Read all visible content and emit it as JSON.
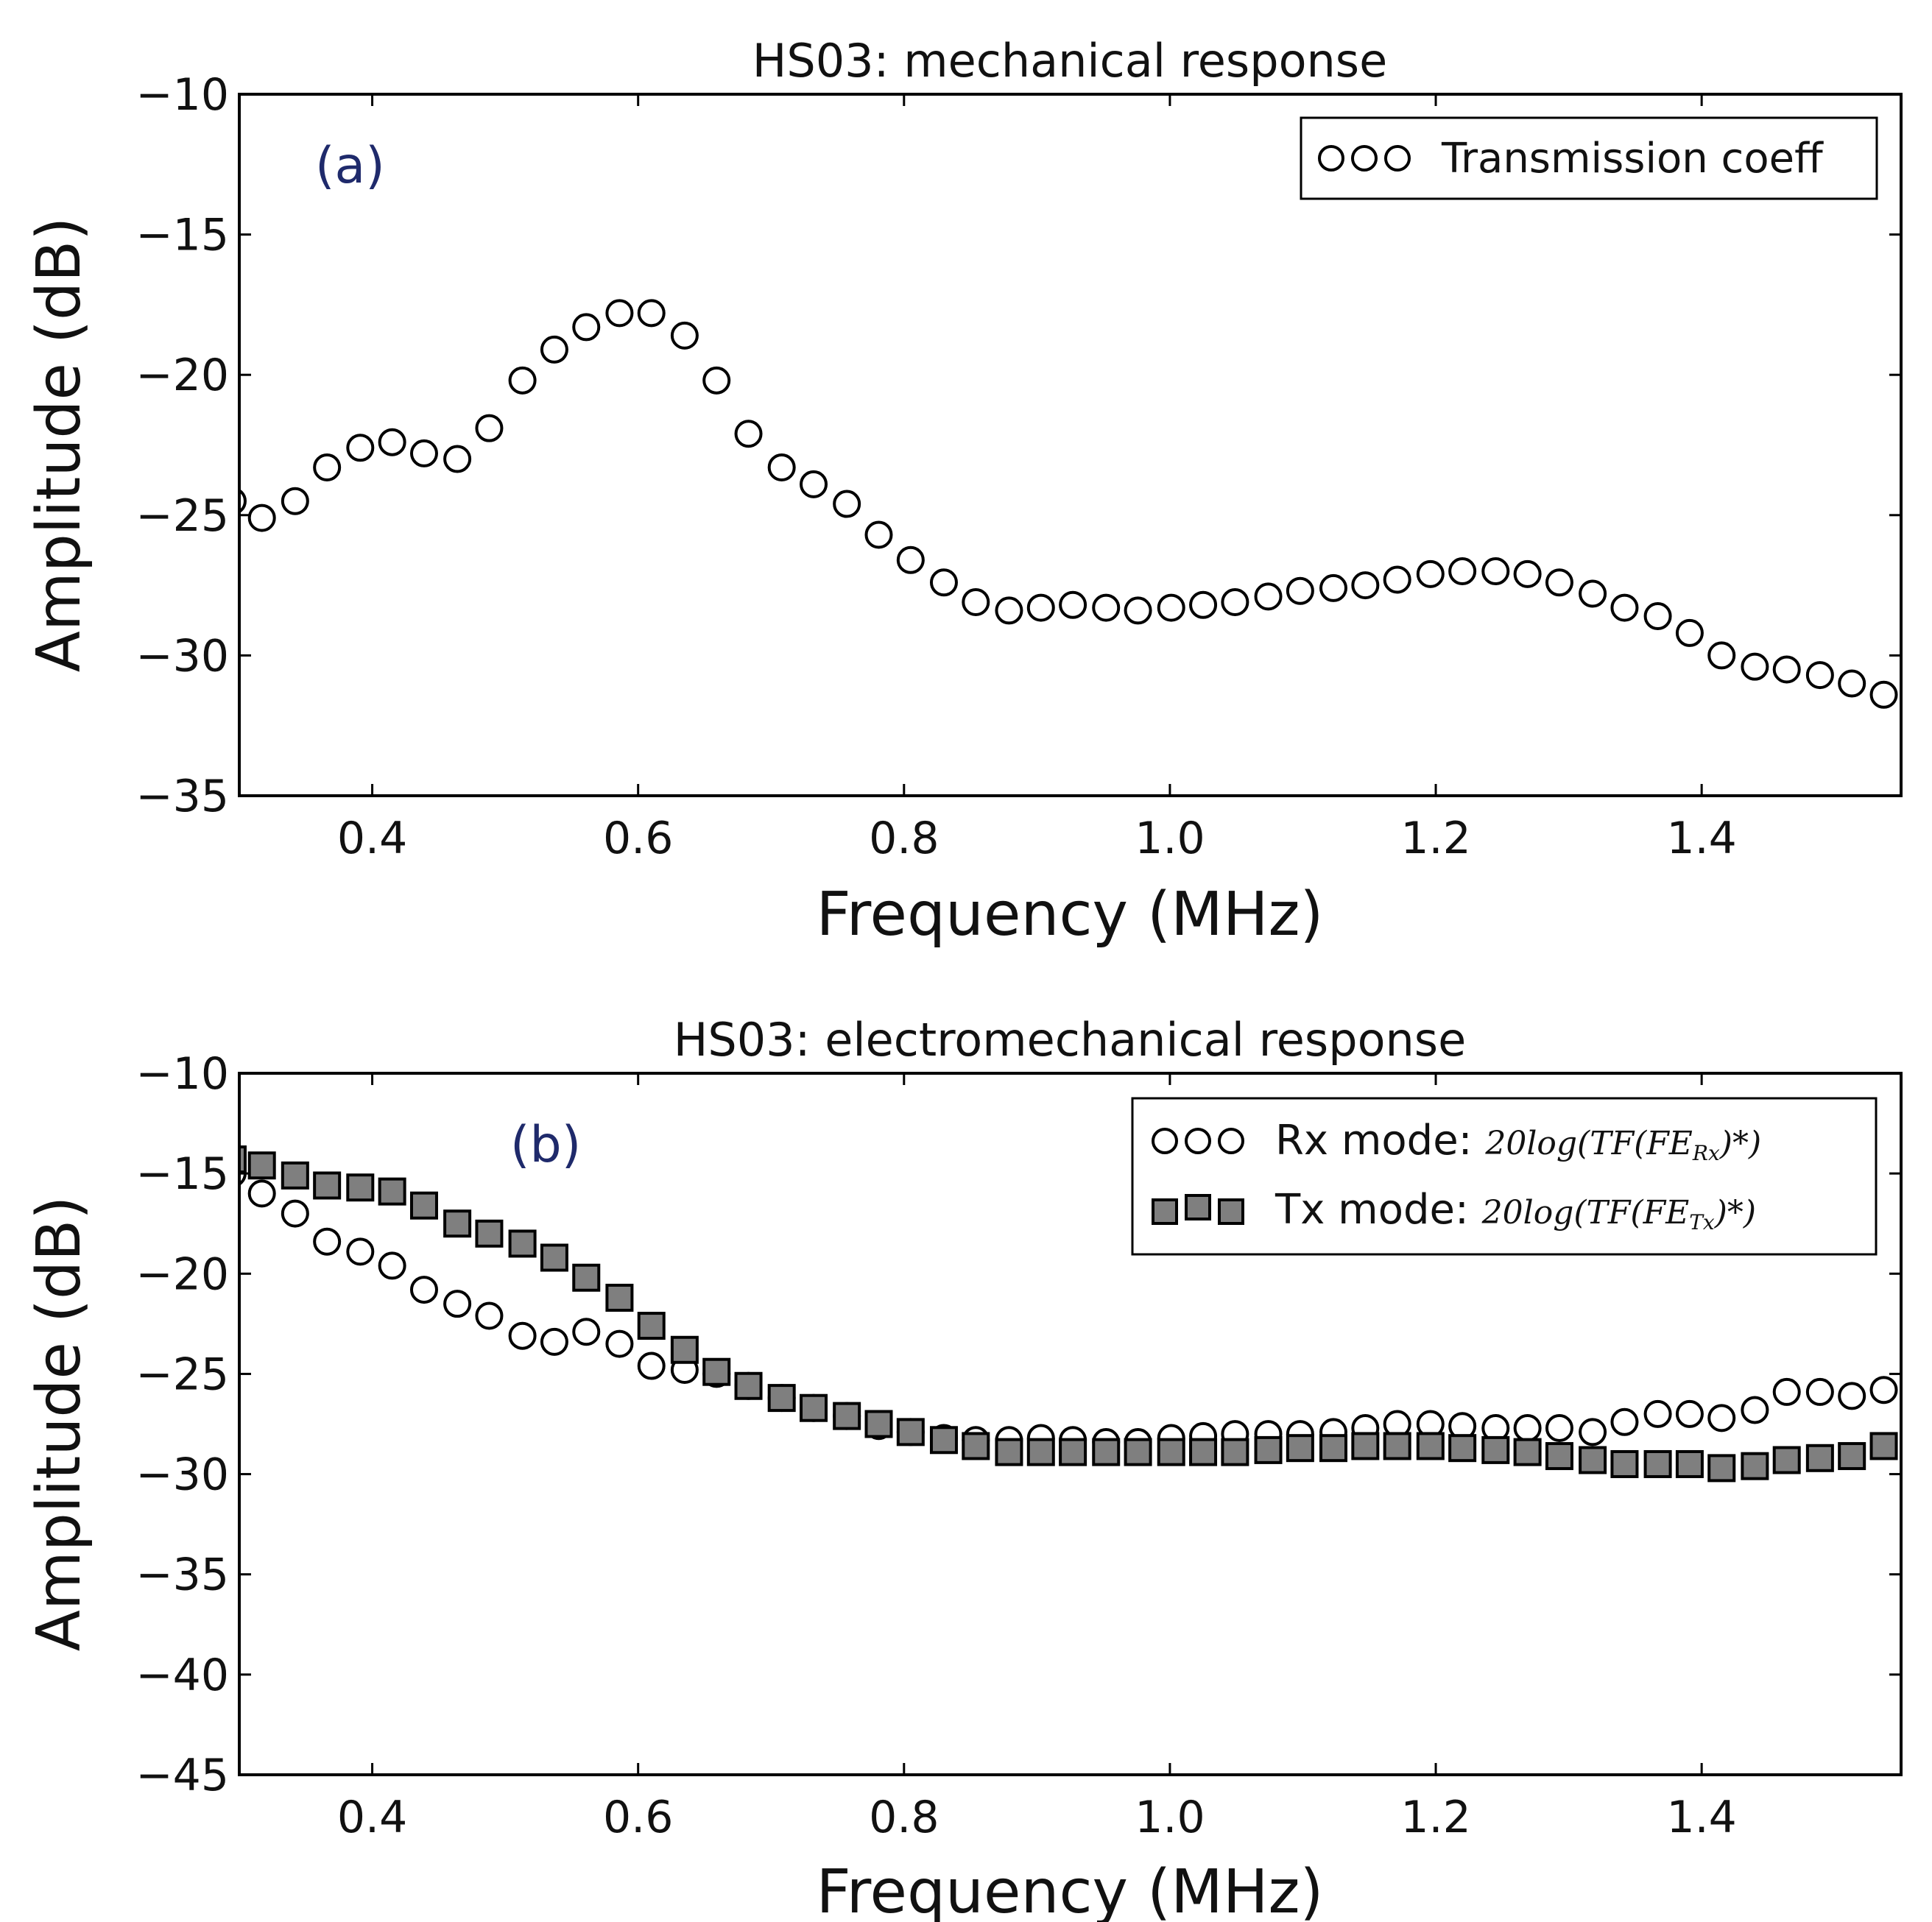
{
  "chart_data": [
    {
      "type": "scatter",
      "panel_label": "(a)",
      "title": "HS03: mechanical response",
      "xlabel": "Frequency (MHz)",
      "ylabel": "Amplitude (dB)",
      "xlim": [
        0.3,
        1.55
      ],
      "ylim": [
        -35,
        -10
      ],
      "xticks": [
        0.4,
        0.6,
        0.8,
        1.0,
        1.2,
        1.4
      ],
      "xtick_labels": [
        "0.4",
        "0.6",
        "0.8",
        "1.0",
        "1.2",
        "1.4"
      ],
      "yticks": [
        -35,
        -30,
        -25,
        -20,
        -15,
        -10
      ],
      "ytick_labels": [
        "−35",
        "−30",
        "−25",
        "−20",
        "−15",
        "−10"
      ],
      "grid": false,
      "legend_position": "top-right",
      "series": [
        {
          "name": "Transmission coeff",
          "legend_text": "Transmission coeff",
          "marker": "open-circle",
          "x": [
            0.295,
            0.317,
            0.342,
            0.366,
            0.391,
            0.415,
            0.439,
            0.464,
            0.488,
            0.513,
            0.537,
            0.561,
            0.586,
            0.61,
            0.635,
            0.659,
            0.683,
            0.708,
            0.732,
            0.757,
            0.781,
            0.805,
            0.83,
            0.854,
            0.879,
            0.903,
            0.927,
            0.952,
            0.976,
            1.001,
            1.025,
            1.049,
            1.074,
            1.098,
            1.123,
            1.147,
            1.171,
            1.196,
            1.22,
            1.245,
            1.269,
            1.293,
            1.318,
            1.342,
            1.367,
            1.391,
            1.415,
            1.44,
            1.464,
            1.489,
            1.513,
            1.537
          ],
          "y": [
            -24.5,
            -25.1,
            -24.5,
            -23.3,
            -22.6,
            -22.4,
            -22.8,
            -23.0,
            -21.9,
            -20.2,
            -19.1,
            -18.3,
            -17.8,
            -17.8,
            -18.6,
            -20.2,
            -22.1,
            -23.3,
            -23.9,
            -24.6,
            -25.7,
            -26.6,
            -27.4,
            -28.1,
            -28.4,
            -28.3,
            -28.2,
            -28.3,
            -28.4,
            -28.3,
            -28.2,
            -28.1,
            -27.9,
            -27.7,
            -27.6,
            -27.5,
            -27.3,
            -27.1,
            -27.0,
            -27.0,
            -27.1,
            -27.4,
            -27.8,
            -28.3,
            -28.6,
            -29.2,
            -30.0,
            -30.4,
            -30.5,
            -30.7,
            -31.0,
            -31.4
          ]
        }
      ]
    },
    {
      "type": "scatter",
      "panel_label": "(b)",
      "title": "HS03: electromechanical response",
      "xlabel": "Frequency (MHz)",
      "ylabel": "Amplitude (dB)",
      "xlim": [
        0.3,
        1.55
      ],
      "ylim": [
        -45,
        -10
      ],
      "xticks": [
        0.4,
        0.6,
        0.8,
        1.0,
        1.2,
        1.4
      ],
      "xtick_labels": [
        "0.4",
        "0.6",
        "0.8",
        "1.0",
        "1.2",
        "1.4"
      ],
      "yticks": [
        -45,
        -40,
        -35,
        -30,
        -25,
        -20,
        -15,
        -10
      ],
      "ytick_labels": [
        "−45",
        "−40",
        "−35",
        "−30",
        "−25",
        "−20",
        "−15",
        "−10"
      ],
      "grid": false,
      "legend_position": "top-right",
      "series": [
        {
          "name": "Rx mode",
          "legend_text": "Rx mode: ",
          "legend_math": "20log(TF(FE",
          "legend_sub": "Rx",
          "legend_math_end": ")*)",
          "marker": "open-circle",
          "x": [
            0.295,
            0.317,
            0.342,
            0.366,
            0.391,
            0.415,
            0.439,
            0.464,
            0.488,
            0.513,
            0.537,
            0.561,
            0.586,
            0.61,
            0.635,
            0.659,
            0.683,
            0.708,
            0.732,
            0.757,
            0.781,
            0.805,
            0.83,
            0.854,
            0.879,
            0.903,
            0.927,
            0.952,
            0.976,
            1.001,
            1.025,
            1.049,
            1.074,
            1.098,
            1.123,
            1.147,
            1.171,
            1.196,
            1.22,
            1.245,
            1.269,
            1.293,
            1.318,
            1.342,
            1.367,
            1.391,
            1.415,
            1.44,
            1.464,
            1.489,
            1.513,
            1.537
          ],
          "y": [
            -15.0,
            -16.0,
            -17.0,
            -18.4,
            -18.9,
            -19.6,
            -20.8,
            -21.5,
            -22.1,
            -23.1,
            -23.4,
            -22.9,
            -23.5,
            -24.6,
            -24.8,
            -25.0,
            -25.6,
            -26.2,
            -26.7,
            -27.1,
            -27.6,
            -27.9,
            -28.2,
            -28.3,
            -28.3,
            -28.2,
            -28.3,
            -28.4,
            -28.4,
            -28.2,
            -28.1,
            -28.0,
            -28.0,
            -28.0,
            -27.9,
            -27.7,
            -27.5,
            -27.5,
            -27.6,
            -27.7,
            -27.7,
            -27.7,
            -27.9,
            -27.4,
            -27.0,
            -27.0,
            -27.2,
            -26.8,
            -25.9,
            -25.9,
            -26.1,
            -25.8
          ]
        },
        {
          "name": "Tx mode",
          "legend_text": "Tx mode: ",
          "legend_math": "20log(TF(FE",
          "legend_sub": "Tx",
          "legend_math_end": ")*)",
          "marker": "filled-square",
          "marker_color": "#7f7f7f",
          "x": [
            0.295,
            0.317,
            0.342,
            0.366,
            0.391,
            0.415,
            0.439,
            0.464,
            0.488,
            0.513,
            0.537,
            0.561,
            0.586,
            0.61,
            0.635,
            0.659,
            0.683,
            0.708,
            0.732,
            0.757,
            0.781,
            0.805,
            0.83,
            0.854,
            0.879,
            0.903,
            0.927,
            0.952,
            0.976,
            1.001,
            1.025,
            1.049,
            1.074,
            1.098,
            1.123,
            1.147,
            1.171,
            1.196,
            1.22,
            1.245,
            1.269,
            1.293,
            1.318,
            1.342,
            1.367,
            1.391,
            1.415,
            1.44,
            1.464,
            1.489,
            1.513,
            1.537
          ],
          "y": [
            -14.3,
            -14.6,
            -15.1,
            -15.6,
            -15.7,
            -15.9,
            -16.6,
            -17.5,
            -18.0,
            -18.5,
            -19.2,
            -20.2,
            -21.2,
            -22.6,
            -23.8,
            -24.9,
            -25.6,
            -26.2,
            -26.7,
            -27.1,
            -27.5,
            -27.9,
            -28.3,
            -28.6,
            -28.9,
            -28.9,
            -28.9,
            -28.9,
            -28.9,
            -28.9,
            -28.9,
            -28.9,
            -28.8,
            -28.7,
            -28.7,
            -28.6,
            -28.6,
            -28.6,
            -28.7,
            -28.8,
            -28.9,
            -29.1,
            -29.3,
            -29.5,
            -29.5,
            -29.5,
            -29.7,
            -29.6,
            -29.3,
            -29.2,
            -29.1,
            -28.6
          ]
        }
      ]
    }
  ]
}
